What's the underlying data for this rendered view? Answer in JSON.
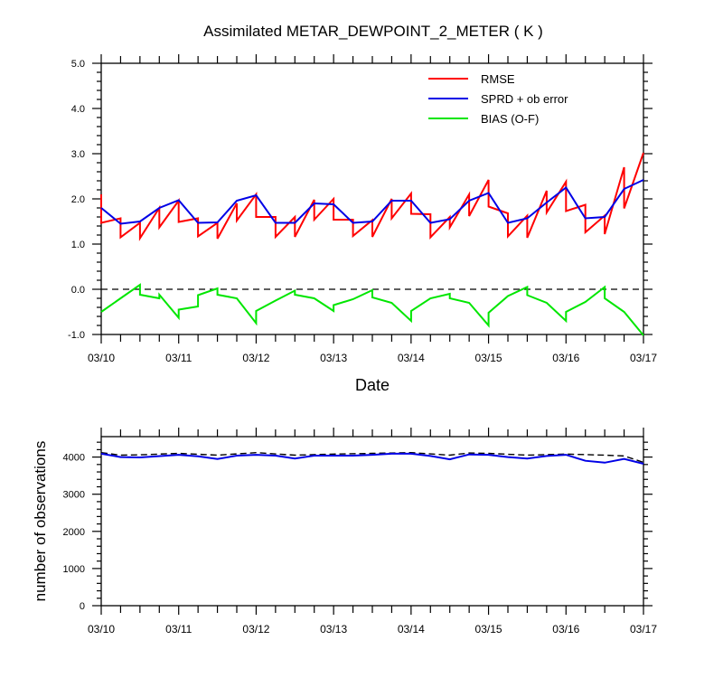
{
  "title": "Assimilated METAR_DEWPOINT_2_METER ( K )",
  "colors": {
    "rmse": "#ff0000",
    "sprd": "#0000e6",
    "bias": "#00e600",
    "count_used": "#0000e6",
    "count_total": "#000000",
    "axis": "#000000"
  },
  "chart_data": [
    {
      "type": "line",
      "title": "Assimilated METAR_DEWPOINT_2_METER ( K )",
      "xlabel": "Date",
      "ylabel": "",
      "x_ticks": [
        "03/10",
        "03/11",
        "03/12",
        "03/13",
        "03/14",
        "03/15",
        "03/16",
        "03/17"
      ],
      "y_ticks": [
        "-1.0",
        "0.0",
        "1.0",
        "2.0",
        "3.0",
        "4.0",
        "5.0"
      ],
      "xlim": [
        0,
        7
      ],
      "ylim": [
        -1,
        5
      ],
      "reference_line": 0,
      "legend": {
        "placement": "top-right",
        "entries": [
          "RMSE",
          "SPRD + ob error",
          "BIAS (O-F)"
        ]
      },
      "series": [
        {
          "name": "RMSE",
          "color": "#ff0000",
          "points": [
            [
              0,
              2.1
            ],
            [
              0,
              1.47
            ],
            [
              0.25,
              1.57
            ],
            [
              0.25,
              1.15
            ],
            [
              0.5,
              1.47
            ],
            [
              0.5,
              1.13
            ],
            [
              0.75,
              1.8
            ],
            [
              0.75,
              1.37
            ],
            [
              1.0,
              1.96
            ],
            [
              1.0,
              1.49
            ],
            [
              1.25,
              1.57
            ],
            [
              1.25,
              1.17
            ],
            [
              1.5,
              1.47
            ],
            [
              1.5,
              1.12
            ],
            [
              1.75,
              1.9
            ],
            [
              1.75,
              1.52
            ],
            [
              2.0,
              2.1
            ],
            [
              2.0,
              1.6
            ],
            [
              2.25,
              1.6
            ],
            [
              2.25,
              1.16
            ],
            [
              2.5,
              1.6
            ],
            [
              2.5,
              1.16
            ],
            [
              2.75,
              1.98
            ],
            [
              2.75,
              1.54
            ],
            [
              3.0,
              2.0
            ],
            [
              3.0,
              1.54
            ],
            [
              3.25,
              1.54
            ],
            [
              3.25,
              1.18
            ],
            [
              3.5,
              1.53
            ],
            [
              3.5,
              1.16
            ],
            [
              3.75,
              2.0
            ],
            [
              3.75,
              1.57
            ],
            [
              4.0,
              2.12
            ],
            [
              4.0,
              1.67
            ],
            [
              4.25,
              1.66
            ],
            [
              4.25,
              1.15
            ],
            [
              4.5,
              1.6
            ],
            [
              4.5,
              1.37
            ],
            [
              4.75,
              2.1
            ],
            [
              4.75,
              1.62
            ],
            [
              5.0,
              2.42
            ],
            [
              5.0,
              1.83
            ],
            [
              5.25,
              1.68
            ],
            [
              5.25,
              1.17
            ],
            [
              5.5,
              1.63
            ],
            [
              5.5,
              1.14
            ],
            [
              5.75,
              2.18
            ],
            [
              5.75,
              1.7
            ],
            [
              6.0,
              2.38
            ],
            [
              6.0,
              1.73
            ],
            [
              6.25,
              1.87
            ],
            [
              6.25,
              1.26
            ],
            [
              6.5,
              1.63
            ],
            [
              6.5,
              1.22
            ],
            [
              6.75,
              2.7
            ],
            [
              6.75,
              1.79
            ],
            [
              7.0,
              3.02
            ]
          ]
        },
        {
          "name": "SPRD + ob error",
          "color": "#0000e6",
          "points": [
            [
              0,
              1.8
            ],
            [
              0.25,
              1.45
            ],
            [
              0.5,
              1.5
            ],
            [
              0.75,
              1.8
            ],
            [
              1.0,
              1.97
            ],
            [
              1.25,
              1.47
            ],
            [
              1.5,
              1.48
            ],
            [
              1.75,
              1.96
            ],
            [
              2.0,
              2.08
            ],
            [
              2.25,
              1.47
            ],
            [
              2.5,
              1.47
            ],
            [
              2.75,
              1.9
            ],
            [
              3.0,
              1.88
            ],
            [
              3.25,
              1.47
            ],
            [
              3.5,
              1.5
            ],
            [
              3.75,
              1.96
            ],
            [
              4.0,
              1.96
            ],
            [
              4.25,
              1.47
            ],
            [
              4.5,
              1.55
            ],
            [
              4.75,
              1.96
            ],
            [
              5.0,
              2.13
            ],
            [
              5.25,
              1.47
            ],
            [
              5.5,
              1.57
            ],
            [
              5.75,
              1.92
            ],
            [
              6.0,
              2.25
            ],
            [
              6.25,
              1.57
            ],
            [
              6.5,
              1.6
            ],
            [
              6.75,
              2.22
            ],
            [
              7.0,
              2.42
            ]
          ]
        },
        {
          "name": "BIAS (O-F)",
          "color": "#00e600",
          "points": [
            [
              0,
              -0.5
            ],
            [
              0.25,
              -0.2
            ],
            [
              0.5,
              0.1
            ],
            [
              0.5,
              -0.12
            ],
            [
              0.75,
              -0.2
            ],
            [
              0.75,
              -0.12
            ],
            [
              1.0,
              -0.63
            ],
            [
              1.0,
              -0.45
            ],
            [
              1.25,
              -0.38
            ],
            [
              1.25,
              -0.13
            ],
            [
              1.5,
              0.02
            ],
            [
              1.5,
              -0.12
            ],
            [
              1.75,
              -0.2
            ],
            [
              2.0,
              -0.75
            ],
            [
              2.0,
              -0.48
            ],
            [
              2.25,
              -0.25
            ],
            [
              2.5,
              -0.03
            ],
            [
              2.5,
              -0.12
            ],
            [
              2.75,
              -0.2
            ],
            [
              3.0,
              -0.48
            ],
            [
              3.0,
              -0.35
            ],
            [
              3.25,
              -0.22
            ],
            [
              3.5,
              -0.02
            ],
            [
              3.5,
              -0.18
            ],
            [
              3.75,
              -0.3
            ],
            [
              4.0,
              -0.7
            ],
            [
              4.0,
              -0.48
            ],
            [
              4.25,
              -0.2
            ],
            [
              4.5,
              -0.1
            ],
            [
              4.5,
              -0.2
            ],
            [
              4.75,
              -0.3
            ],
            [
              5.0,
              -0.8
            ],
            [
              5.0,
              -0.52
            ],
            [
              5.25,
              -0.15
            ],
            [
              5.5,
              0.05
            ],
            [
              5.5,
              -0.13
            ],
            [
              5.75,
              -0.3
            ],
            [
              6.0,
              -0.7
            ],
            [
              6.0,
              -0.5
            ],
            [
              6.25,
              -0.28
            ],
            [
              6.5,
              0.05
            ],
            [
              6.5,
              -0.2
            ],
            [
              6.75,
              -0.5
            ],
            [
              7.0,
              -1.02
            ]
          ]
        }
      ]
    },
    {
      "type": "line",
      "title": "",
      "xlabel": "",
      "ylabel": "number of observations",
      "x_ticks": [
        "03/10",
        "03/11",
        "03/12",
        "03/13",
        "03/14",
        "03/15",
        "03/16",
        "03/17"
      ],
      "y_ticks": [
        "0",
        "1000",
        "2000",
        "3000",
        "4000"
      ],
      "xlim": [
        0,
        7
      ],
      "ylim": [
        0,
        4550
      ],
      "series": [
        {
          "style": "dashed",
          "color": "#000000",
          "points": [
            [
              0,
              4120
            ],
            [
              0.25,
              4050
            ],
            [
              0.5,
              4060
            ],
            [
              1.0,
              4100
            ],
            [
              1.5,
              4050
            ],
            [
              2.0,
              4120
            ],
            [
              2.5,
              4050
            ],
            [
              3.0,
              4080
            ],
            [
              3.5,
              4100
            ],
            [
              4.0,
              4120
            ],
            [
              4.5,
              4050
            ],
            [
              4.75,
              4110
            ],
            [
              5.0,
              4100
            ],
            [
              5.5,
              4050
            ],
            [
              6.0,
              4080
            ],
            [
              6.5,
              4050
            ],
            [
              6.75,
              4030
            ],
            [
              7.0,
              3860
            ]
          ]
        },
        {
          "style": "solid",
          "color": "#0000e6",
          "points": [
            [
              0,
              4090
            ],
            [
              0.25,
              4000
            ],
            [
              0.5,
              3990
            ],
            [
              1.0,
              4060
            ],
            [
              1.25,
              4020
            ],
            [
              1.5,
              3950
            ],
            [
              1.75,
              4040
            ],
            [
              2.0,
              4060
            ],
            [
              2.25,
              4040
            ],
            [
              2.5,
              3960
            ],
            [
              2.75,
              4040
            ],
            [
              3.0,
              4040
            ],
            [
              3.25,
              4040
            ],
            [
              3.5,
              4060
            ],
            [
              3.75,
              4090
            ],
            [
              4.0,
              4090
            ],
            [
              4.25,
              4030
            ],
            [
              4.5,
              3940
            ],
            [
              4.75,
              4070
            ],
            [
              5.0,
              4060
            ],
            [
              5.25,
              4000
            ],
            [
              5.5,
              3960
            ],
            [
              5.75,
              4030
            ],
            [
              6.0,
              4060
            ],
            [
              6.25,
              3900
            ],
            [
              6.5,
              3850
            ],
            [
              6.75,
              3950
            ],
            [
              7.0,
              3820
            ]
          ]
        }
      ]
    }
  ]
}
